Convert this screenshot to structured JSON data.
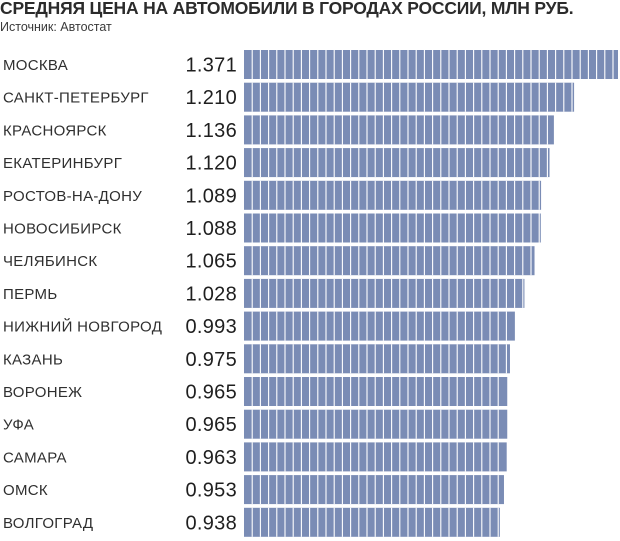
{
  "header": {
    "title": "СРЕДНЯЯ ЦЕНА НА АВТОМОБИЛИ В ГОРОДАХ РОССИИ, МЛН РУБ.",
    "source": "Источник: Автостат"
  },
  "colors": {
    "bar_fill": "#7a8cb5",
    "bar_segment_line": "#ffffff",
    "text": "#2f2f2f"
  },
  "chart_data": {
    "type": "bar",
    "orientation": "horizontal",
    "title": "СРЕДНЯЯ ЦЕНА НА АВТОМОБИЛИ В ГОРОДАХ РОССИИ, МЛН РУБ.",
    "subtitle": "Источник: Автостат",
    "categories": [
      "МОСКВА",
      "САНКТ-ПЕТЕРБУРГ",
      "КРАСНОЯРСК",
      "ЕКАТЕРИНБУРГ",
      "РОСТОВ-НА-ДОНУ",
      "НОВОСИБИРСК",
      "ЧЕЛЯБИНСК",
      "ПЕРМЬ",
      "НИЖНИЙ НОВГОРОД",
      "КАЗАНЬ",
      "ВОРОНЕЖ",
      "УФА",
      "САМАРА",
      "ОМСК",
      "ВОЛГОГРАД"
    ],
    "values": [
      1.371,
      1.21,
      1.136,
      1.12,
      1.089,
      1.088,
      1.065,
      1.028,
      0.993,
      0.975,
      0.965,
      0.965,
      0.963,
      0.953,
      0.938
    ],
    "value_labels": [
      "1.371",
      "1.210",
      "1.136",
      "1.120",
      "1.089",
      "1.088",
      "1.065",
      "1.028",
      "0.993",
      "0.975",
      "0.965",
      "0.965",
      "0.963",
      "0.953",
      "0.938"
    ],
    "xlim": [
      0,
      1.371
    ],
    "grid": false,
    "legend": "none"
  }
}
